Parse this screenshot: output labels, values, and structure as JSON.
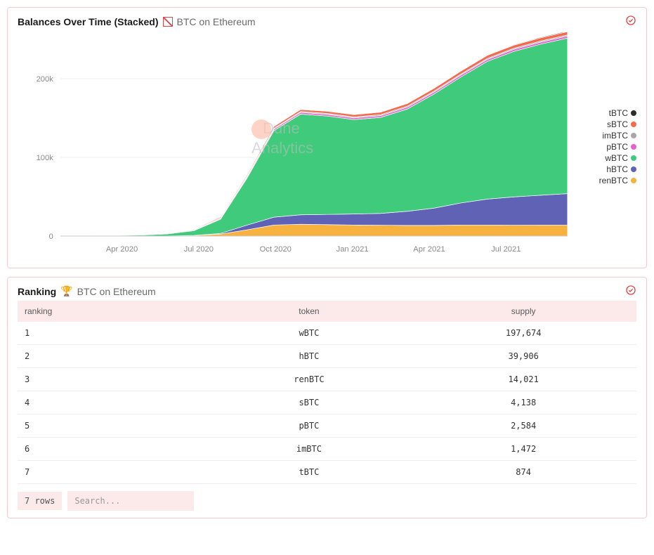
{
  "chart_panel": {
    "title": "Balances Over Time (Stacked)",
    "subtitle": "BTC on Ethereum",
    "chart": {
      "type": "stacked-area",
      "ylim": [
        0,
        250000
      ],
      "yticks": [
        0,
        100000,
        200000
      ],
      "ytick_labels": [
        "0",
        "100k",
        "200k"
      ],
      "x_labels": [
        "Apr 2020",
        "Jul 2020",
        "Oct 2020",
        "Jan 2021",
        "Apr 2021",
        "Jul 2021"
      ],
      "x_count": 20,
      "background_color": "#ffffff",
      "grid_color": "#f0f0f0",
      "axis_font_size": 11,
      "series_order_top_to_bottom": [
        "tBTC",
        "sBTC",
        "imBTC",
        "pBTC",
        "wBTC",
        "hBTC",
        "renBTC"
      ],
      "series": {
        "renBTC": {
          "color": "#f6b13f",
          "values": [
            0,
            0,
            0,
            50,
            150,
            800,
            2500,
            8000,
            14000,
            15000,
            14500,
            14000,
            13800,
            13500,
            13500,
            14000,
            14000,
            13800,
            13900,
            14021
          ]
        },
        "hBTC": {
          "color": "#6063b5",
          "values": [
            0,
            0,
            0,
            0,
            0,
            0,
            800,
            6000,
            10000,
            12000,
            13000,
            14000,
            15000,
            18000,
            22000,
            28000,
            33000,
            36000,
            38000,
            39906
          ]
        },
        "wBTC": {
          "color": "#3fcb7b",
          "values": [
            600,
            700,
            900,
            1200,
            2500,
            6000,
            18000,
            60000,
            110000,
            128000,
            125000,
            120000,
            122000,
            130000,
            145000,
            160000,
            175000,
            185000,
            192000,
            197674
          ]
        },
        "pBTC": {
          "color": "#e163d0",
          "values": [
            0,
            0,
            0,
            50,
            150,
            400,
            900,
            1500,
            1900,
            2100,
            2100,
            2100,
            2200,
            2300,
            2350,
            2400,
            2450,
            2500,
            2540,
            2584
          ]
        },
        "imBTC": {
          "color": "#a8a8a8",
          "values": [
            300,
            350,
            400,
            480,
            600,
            750,
            900,
            1000,
            1100,
            1150,
            1200,
            1250,
            1280,
            1300,
            1350,
            1380,
            1400,
            1430,
            1450,
            1472
          ]
        },
        "sBTC": {
          "color": "#f36b4f",
          "values": [
            0,
            20,
            50,
            120,
            300,
            700,
            1200,
            1800,
            2300,
            2600,
            2800,
            3000,
            3200,
            3400,
            3600,
            3800,
            3900,
            4000,
            4070,
            4138
          ]
        },
        "tBTC": {
          "color": "#2b2b2b",
          "values": [
            0,
            0,
            0,
            0,
            0,
            5,
            30,
            100,
            200,
            300,
            350,
            400,
            450,
            500,
            600,
            650,
            700,
            750,
            820,
            874
          ]
        }
      }
    },
    "legend": [
      {
        "label": "tBTC",
        "color": "#2b2b2b"
      },
      {
        "label": "sBTC",
        "color": "#f36b4f"
      },
      {
        "label": "imBTC",
        "color": "#a8a8a8"
      },
      {
        "label": "pBTC",
        "color": "#e163d0"
      },
      {
        "label": "wBTC",
        "color": "#3fcb7b"
      },
      {
        "label": "hBTC",
        "color": "#6063b5"
      },
      {
        "label": "renBTC",
        "color": "#f6b13f"
      }
    ],
    "watermark_top": "Dune",
    "watermark_bottom": "Analytics"
  },
  "ranking_panel": {
    "title": "Ranking",
    "trophy": "🏆",
    "subtitle": "BTC on Ethereum",
    "columns": [
      "ranking",
      "token",
      "supply"
    ],
    "rows": [
      [
        "1",
        "wBTC",
        "197,674"
      ],
      [
        "2",
        "hBTC",
        "39,906"
      ],
      [
        "3",
        "renBTC",
        "14,021"
      ],
      [
        "4",
        "sBTC",
        "4,138"
      ],
      [
        "5",
        "pBTC",
        "2,584"
      ],
      [
        "6",
        "imBTC",
        "1,472"
      ],
      [
        "7",
        "tBTC",
        "874"
      ]
    ],
    "row_count_label": "7 rows",
    "search_placeholder": "Search..."
  }
}
